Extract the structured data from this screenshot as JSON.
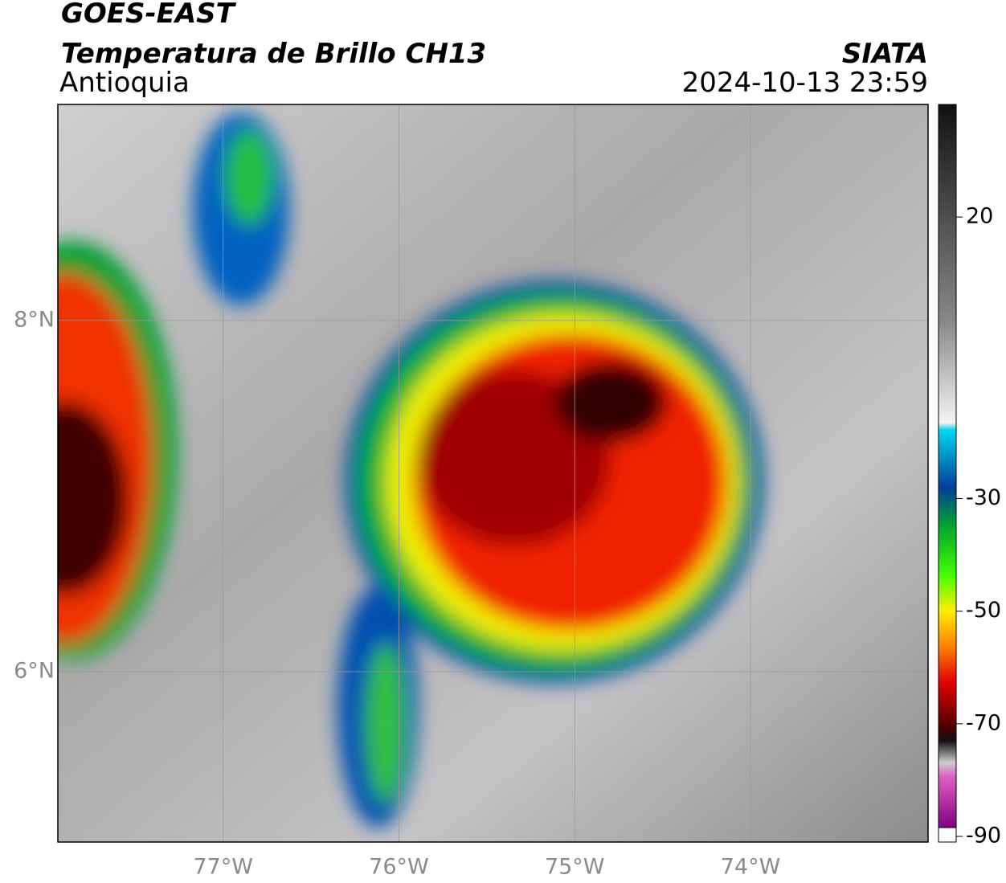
{
  "header": {
    "title": "GOES-EAST",
    "subtitle": "Temperatura de Brillo CH13",
    "region": "Antioquia",
    "source": "SIATA",
    "datetime": "2024-10-13 23:59"
  },
  "map": {
    "xlim": [
      -77.94,
      -72.99
    ],
    "ylim": [
      5.03,
      9.23
    ],
    "xticks": [
      {
        "value": -77,
        "label": "77°W"
      },
      {
        "value": -76,
        "label": "76°W"
      },
      {
        "value": -75,
        "label": "75°W"
      },
      {
        "value": -74,
        "label": "74°W"
      }
    ],
    "yticks": [
      {
        "value": 6,
        "label": "6°N"
      },
      {
        "value": 8,
        "label": "8°N"
      }
    ],
    "grid": true
  },
  "colorbar": {
    "lim": [
      -91,
      40
    ],
    "ticks": [
      20,
      -30,
      -50,
      -70,
      -90
    ]
  }
}
